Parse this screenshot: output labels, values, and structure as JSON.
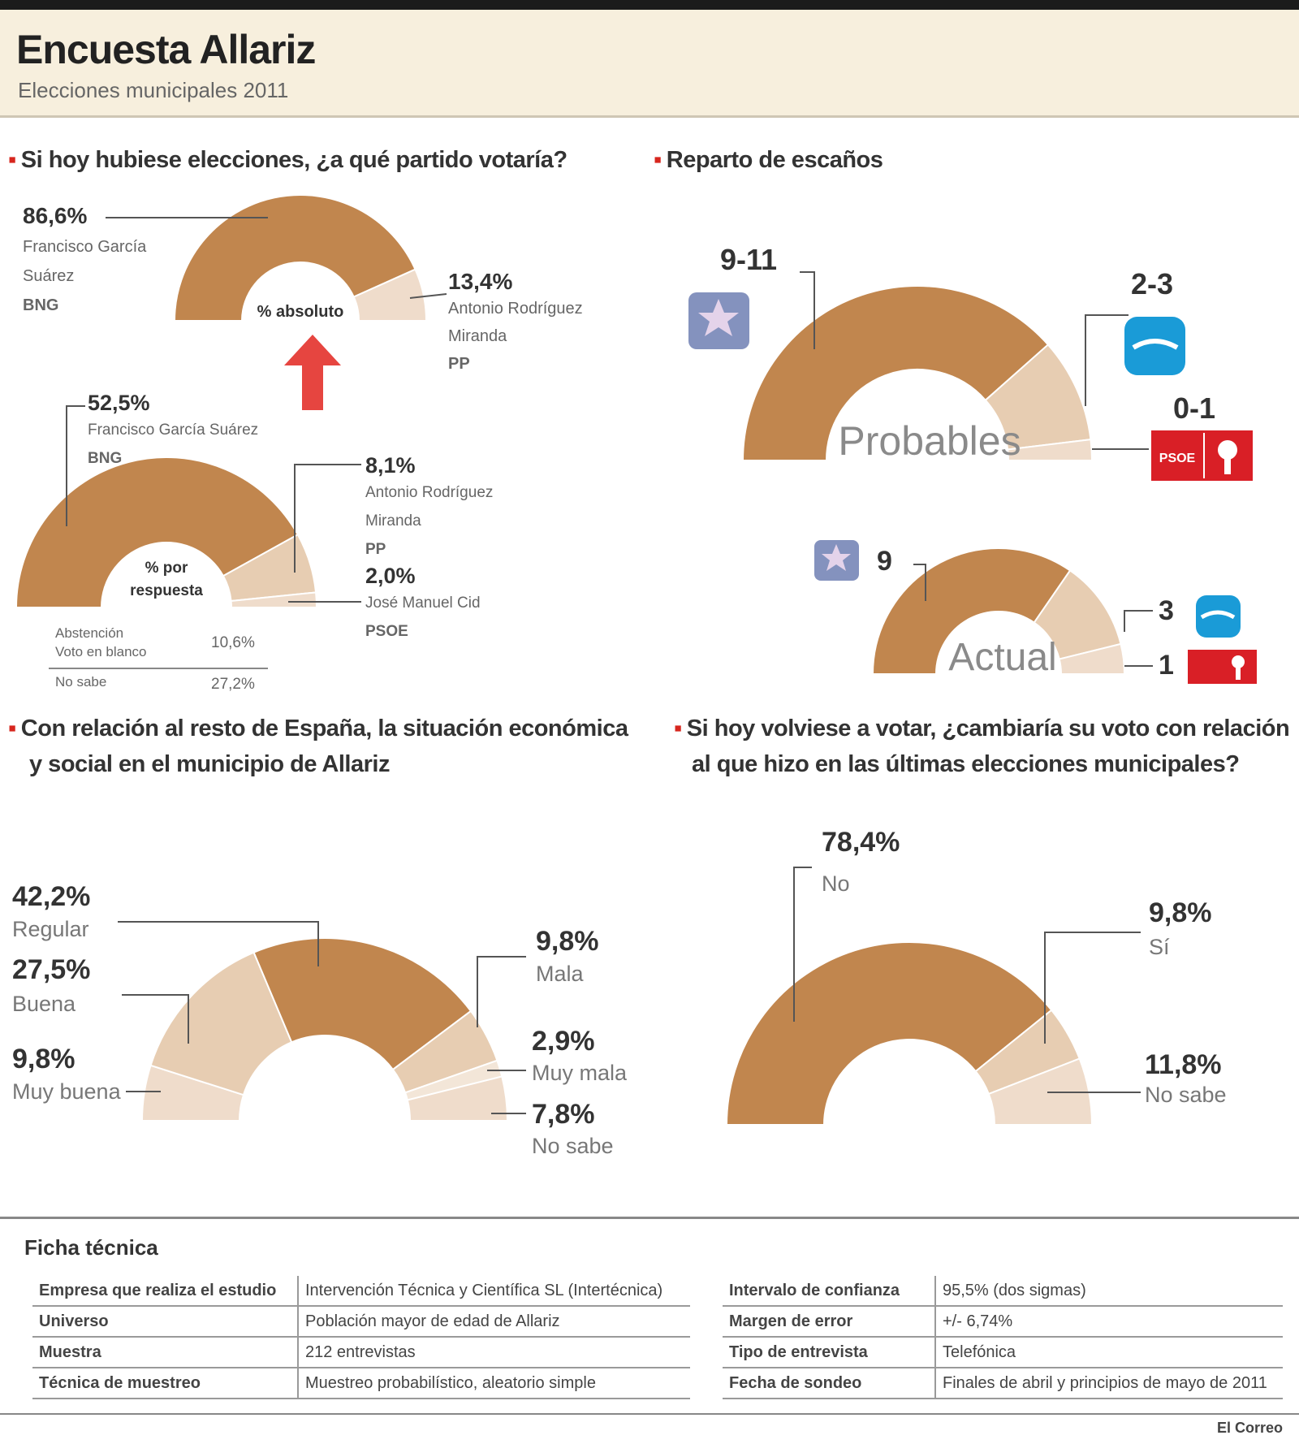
{
  "header": {
    "title": "Encuesta Allariz",
    "subtitle": "Elecciones municipales 2011"
  },
  "questions": {
    "q1": "Si hoy hubiese elecciones, ¿a qué partido votaría?",
    "q2": "Reparto de escaños",
    "q3_line1": "Con relación al resto de España, la situación económica",
    "q3_line2": "y social en el municipio de Allariz",
    "q4_line1": "Si hoy volviese a votar, ¿cambiaría su voto con relación",
    "q4_line2": "al que hizo en las últimas elecciones municipales?"
  },
  "chart_data": [
    {
      "type": "pie",
      "shape": "half-donut",
      "center_label": "% absoluto",
      "slices": [
        {
          "label_lines": [
            "Francisco García",
            "Suárez",
            "BNG"
          ],
          "value": 86.6,
          "value_label": "86,6%"
        },
        {
          "label_lines": [
            "Antonio Rodríguez",
            "Miranda",
            "PP"
          ],
          "value": 13.4,
          "value_label": "13,4%"
        }
      ]
    },
    {
      "type": "pie",
      "shape": "half-donut",
      "center_label_lines": [
        "% por",
        "respuesta"
      ],
      "slices": [
        {
          "label_lines": [
            "Francisco García Suárez",
            "BNG"
          ],
          "value": 52.5,
          "value_label": "52,5%"
        },
        {
          "label_lines": [
            "Antonio Rodríguez",
            "Miranda",
            "PP"
          ],
          "value": 8.1,
          "value_label": "8,1%"
        },
        {
          "label_lines": [
            "José Manuel Cid",
            "PSOE"
          ],
          "value": 2.0,
          "value_label": "2,0%"
        }
      ],
      "other": [
        {
          "label_lines": [
            "Abstención",
            "Voto en blanco"
          ],
          "value_label": "10,6%"
        },
        {
          "label_lines": [
            "No sabe"
          ],
          "value_label": "27,2%"
        }
      ]
    },
    {
      "type": "pie",
      "shape": "half-donut",
      "center_label": "Probables",
      "seats": [
        {
          "party": "BNG",
          "value": 10,
          "seats_label": "9-11"
        },
        {
          "party": "PP",
          "value": 2.5,
          "seats_label": "2-3"
        },
        {
          "party": "PSOE",
          "value": 0.5,
          "seats_label": "0-1"
        }
      ]
    },
    {
      "type": "pie",
      "shape": "half-donut",
      "center_label": "Actual",
      "seats": [
        {
          "party": "BNG",
          "value": 9,
          "seats_label": "9"
        },
        {
          "party": "PP",
          "value": 3,
          "seats_label": "3"
        },
        {
          "party": "PSOE",
          "value": 1,
          "seats_label": "1"
        }
      ]
    },
    {
      "type": "pie",
      "shape": "half-donut",
      "slices": [
        {
          "label": "Muy buena",
          "value": 9.8,
          "value_label": "9,8%"
        },
        {
          "label": "Buena",
          "value": 27.5,
          "value_label": "27,5%"
        },
        {
          "label": "Regular",
          "value": 42.2,
          "value_label": "42,2%"
        },
        {
          "label": "Mala",
          "value": 9.8,
          "value_label": "9,8%"
        },
        {
          "label": "Muy mala",
          "value": 2.9,
          "value_label": "2,9%"
        },
        {
          "label": "No sabe",
          "value": 7.8,
          "value_label": "7,8%"
        }
      ]
    },
    {
      "type": "pie",
      "shape": "half-donut",
      "slices": [
        {
          "label": "No",
          "value": 78.4,
          "value_label": "78,4%"
        },
        {
          "label": "Sí",
          "value": 9.8,
          "value_label": "9,8%"
        },
        {
          "label": "No sabe",
          "value": 11.8,
          "value_label": "11,8%"
        }
      ]
    }
  ],
  "logos": {
    "bng": "bng-star-logo",
    "pp": "pp-seagull-logo",
    "psoe": "psoe-rose-logo",
    "psoe_text": "PSOE"
  },
  "colors": {
    "main": "#c1864e",
    "light1": "#e7cdb2",
    "light2": "#efdccb",
    "light3": "#f3e6d8",
    "arrow": "#e2241e",
    "pp": "#1a9bd7",
    "psoe": "#d91f26",
    "bng": "#6f7fb3"
  },
  "ficha": {
    "title": "Ficha técnica",
    "left": [
      {
        "k": "Empresa que realiza el estudio",
        "v": "Intervención Técnica y Científica SL (Intertécnica)"
      },
      {
        "k": "Universo",
        "v": "Población mayor de edad de Allariz"
      },
      {
        "k": "Muestra",
        "v": "212 entrevistas"
      },
      {
        "k": "Técnica de muestreo",
        "v": "Muestreo probabilístico, aleatorio simple"
      }
    ],
    "right": [
      {
        "k": "Intervalo de confianza",
        "v": "95,5% (dos sigmas)"
      },
      {
        "k": "Margen de error",
        "v": "+/- 6,74%"
      },
      {
        "k": "Tipo de entrevista",
        "v": "Telefónica"
      },
      {
        "k": "Fecha de sondeo",
        "v": "Finales de abril y principios de mayo de 2011"
      }
    ]
  },
  "credit": "El Correo"
}
